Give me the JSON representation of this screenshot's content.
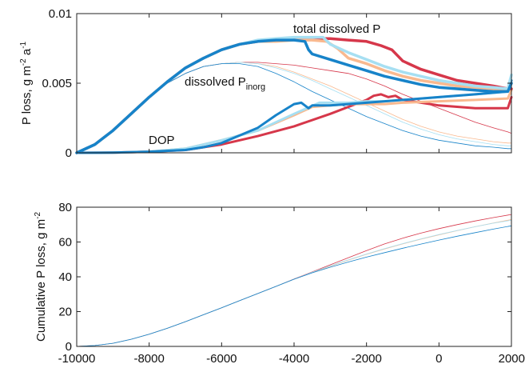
{
  "chart_data": [
    {
      "type": "line",
      "ylabel_main": "P loss, g m",
      "ylabel_exp1": "-2",
      "ylabel_mid": " a",
      "ylabel_exp2": "-1",
      "xlim": [
        -10000,
        2000
      ],
      "ylim": [
        0,
        0.01
      ],
      "yticks": [
        0,
        0.005,
        0.01
      ],
      "ytick_labels": [
        "0",
        "0.005",
        "0.01"
      ],
      "grid": false,
      "annotations": {
        "total": "total dissolved P",
        "dissolved_main": "dissolved P",
        "dissolved_sub": "inorg",
        "dop": "DOP"
      },
      "series": [
        {
          "group": "total",
          "color": "#d6374a",
          "width": 3.5,
          "x": [
            -10000,
            -9500,
            -9000,
            -8500,
            -8000,
            -7500,
            -7000,
            -6500,
            -6000,
            -5500,
            -5000,
            -4500,
            -4000,
            -3500,
            -3200,
            -3000,
            -2500,
            -2000,
            -1600,
            -1300,
            -1000,
            -500,
            0,
            500,
            1000,
            1500,
            1900,
            2000
          ],
          "y": [
            0,
            0.0006,
            0.0016,
            0.0028,
            0.004,
            0.0051,
            0.0061,
            0.0068,
            0.0074,
            0.0078,
            0.008,
            0.0081,
            0.0082,
            0.0082,
            0.0082,
            0.0082,
            0.0081,
            0.008,
            0.0077,
            0.0074,
            0.0066,
            0.006,
            0.0056,
            0.0052,
            0.005,
            0.0048,
            0.0046,
            0.0046
          ]
        },
        {
          "group": "total",
          "color": "#f9b98f",
          "width": 3.5,
          "x": [
            -10000,
            -9500,
            -9000,
            -8500,
            -8000,
            -7500,
            -7000,
            -6500,
            -6000,
            -5500,
            -5000,
            -4500,
            -4000,
            -3500,
            -3100,
            -2800,
            -2500,
            -2000,
            -1500,
            -1000,
            -500,
            0,
            500,
            1000,
            1500,
            1900,
            2000
          ],
          "y": [
            0,
            0.0006,
            0.0016,
            0.0028,
            0.004,
            0.0051,
            0.0061,
            0.0068,
            0.0074,
            0.0078,
            0.008,
            0.008,
            0.0081,
            0.0081,
            0.008,
            0.0075,
            0.0068,
            0.0064,
            0.0059,
            0.0055,
            0.0052,
            0.005,
            0.0048,
            0.0047,
            0.0046,
            0.0045,
            0.005
          ]
        },
        {
          "group": "total",
          "color": "#a6dff2",
          "width": 3.5,
          "x": [
            -10000,
            -9500,
            -9000,
            -8500,
            -8000,
            -7500,
            -7000,
            -6500,
            -6000,
            -5500,
            -5000,
            -4500,
            -4000,
            -3500,
            -3200,
            -3000,
            -2500,
            -2000,
            -1500,
            -1000,
            -500,
            0,
            500,
            1000,
            1500,
            1900,
            2000
          ],
          "y": [
            0,
            0.0006,
            0.0016,
            0.0028,
            0.004,
            0.0051,
            0.0061,
            0.0068,
            0.0074,
            0.0078,
            0.0081,
            0.0082,
            0.0083,
            0.0083,
            0.0083,
            0.0078,
            0.0072,
            0.0067,
            0.0062,
            0.0058,
            0.0055,
            0.0052,
            0.005,
            0.0048,
            0.0047,
            0.0046,
            0.0056
          ]
        },
        {
          "group": "total",
          "color": "#1783c9",
          "width": 3.5,
          "x": [
            -10000,
            -9500,
            -9000,
            -8500,
            -8000,
            -7500,
            -7000,
            -6500,
            -6000,
            -5500,
            -5000,
            -4500,
            -4000,
            -3700,
            -3600,
            -3500,
            -3000,
            -2500,
            -2000,
            -1500,
            -1000,
            -500,
            0,
            500,
            1000,
            1500,
            1900,
            2000
          ],
          "y": [
            0,
            0.0006,
            0.0016,
            0.0028,
            0.004,
            0.0051,
            0.0061,
            0.0068,
            0.0074,
            0.0078,
            0.008,
            0.0081,
            0.0081,
            0.008,
            0.0074,
            0.0071,
            0.0067,
            0.0063,
            0.0059,
            0.0055,
            0.0052,
            0.0049,
            0.0047,
            0.0046,
            0.0045,
            0.0044,
            0.0044,
            0.005
          ]
        },
        {
          "group": "dop",
          "color": "#d6374a",
          "width": 3,
          "x": [
            -10000,
            -9000,
            -8000,
            -7000,
            -6500,
            -6000,
            -5000,
            -4000,
            -3000,
            -2500,
            -2000,
            -1800,
            -1600,
            -1400,
            -1200,
            -1000,
            0,
            1000,
            1900,
            2000
          ],
          "y": [
            0,
            1e-05,
            8e-05,
            0.0002,
            0.0004,
            0.0006,
            0.0012,
            0.0019,
            0.0028,
            0.0033,
            0.0038,
            0.0041,
            0.0042,
            0.004,
            0.0041,
            0.0038,
            0.0034,
            0.0032,
            0.0032,
            0.004
          ]
        },
        {
          "group": "dop",
          "color": "#f9b98f",
          "width": 3,
          "x": [
            -10000,
            -9000,
            -8000,
            -7000,
            -6500,
            -6000,
            -5000,
            -4000,
            -3500,
            -3000,
            -2500,
            -2000,
            -1500,
            -1000,
            0,
            1000,
            1900,
            2000
          ],
          "y": [
            0,
            1e-05,
            8e-05,
            0.0003,
            0.0006,
            0.0009,
            0.0016,
            0.0027,
            0.0033,
            0.0034,
            0.0035,
            0.0035,
            0.0035,
            0.0036,
            0.0037,
            0.0038,
            0.0039,
            0.0045
          ]
        },
        {
          "group": "dop",
          "color": "#a6dff2",
          "width": 3,
          "x": [
            -10000,
            -9000,
            -8000,
            -7000,
            -6500,
            -6000,
            -5000,
            -4000,
            -3300,
            -3000,
            -2500,
            -2000,
            -1500,
            -1000,
            0,
            1000,
            1900,
            2000
          ],
          "y": [
            0,
            1e-05,
            8e-05,
            0.0003,
            0.0006,
            0.0009,
            0.0016,
            0.0028,
            0.0036,
            0.0036,
            0.0036,
            0.0037,
            0.0037,
            0.0038,
            0.004,
            0.0042,
            0.0044,
            0.0052
          ]
        },
        {
          "group": "dop",
          "color": "#1783c9",
          "width": 3,
          "x": [
            -10000,
            -9000,
            -8000,
            -7000,
            -6500,
            -6000,
            -5000,
            -4500,
            -4000,
            -3800,
            -3600,
            -3500,
            -3000,
            -2500,
            -2000,
            -1500,
            -1000,
            0,
            1000,
            1900,
            2000
          ],
          "y": [
            0,
            1e-05,
            8e-05,
            0.0002,
            0.0004,
            0.0007,
            0.0018,
            0.0027,
            0.0035,
            0.0036,
            0.0032,
            0.0034,
            0.0034,
            0.0035,
            0.0036,
            0.0037,
            0.0038,
            0.004,
            0.0042,
            0.0044,
            0.0052
          ]
        },
        {
          "group": "pinorg",
          "color": "#d6374a",
          "width": 0.8,
          "x": [
            -10000,
            -9500,
            -9000,
            -8500,
            -8000,
            -7500,
            -7000,
            -6500,
            -6000,
            -5500,
            -5000,
            -4500,
            -4000,
            -3500,
            -3000,
            -2500,
            -2000,
            -1500,
            -1000,
            -500,
            0,
            500,
            1000,
            1500,
            1900,
            2000
          ],
          "y": [
            0,
            0.0006,
            0.0016,
            0.0028,
            0.004,
            0.005,
            0.0057,
            0.0062,
            0.0064,
            0.0065,
            0.0065,
            0.0064,
            0.0063,
            0.0061,
            0.0059,
            0.0057,
            0.0053,
            0.0048,
            0.0042,
            0.0037,
            0.0032,
            0.0027,
            0.0022,
            0.0018,
            0.0015,
            0.0014
          ]
        },
        {
          "group": "pinorg",
          "color": "#f9b98f",
          "width": 0.8,
          "x": [
            -10000,
            -9500,
            -9000,
            -8500,
            -8000,
            -7500,
            -7000,
            -6500,
            -6000,
            -5500,
            -5000,
            -4500,
            -4000,
            -3500,
            -3000,
            -2500,
            -2000,
            -1500,
            -1000,
            -500,
            0,
            500,
            1000,
            1500,
            1900,
            2000
          ],
          "y": [
            0,
            0.0006,
            0.0016,
            0.0028,
            0.004,
            0.005,
            0.0057,
            0.0062,
            0.0064,
            0.0065,
            0.0064,
            0.0062,
            0.0058,
            0.0053,
            0.0048,
            0.0042,
            0.0036,
            0.003,
            0.0024,
            0.0019,
            0.0015,
            0.0012,
            0.001,
            0.0008,
            0.0007,
            0.0007
          ]
        },
        {
          "group": "pinorg",
          "color": "#a6dff2",
          "width": 0.8,
          "x": [
            -10000,
            -9500,
            -9000,
            -8500,
            -8000,
            -7500,
            -7000,
            -6500,
            -6000,
            -5500,
            -5000,
            -4500,
            -4000,
            -3500,
            -3000,
            -2500,
            -2000,
            -1500,
            -1000,
            -500,
            0,
            500,
            1000,
            1500,
            1900,
            2000
          ],
          "y": [
            0,
            0.0006,
            0.0016,
            0.0028,
            0.004,
            0.005,
            0.0057,
            0.0062,
            0.0064,
            0.0065,
            0.0064,
            0.0061,
            0.0057,
            0.0052,
            0.0046,
            0.004,
            0.0034,
            0.0028,
            0.0022,
            0.0017,
            0.0013,
            0.001,
            0.0008,
            0.0006,
            0.0005,
            0.0005
          ]
        },
        {
          "group": "pinorg",
          "color": "#1783c9",
          "width": 0.8,
          "x": [
            -10000,
            -9500,
            -9000,
            -8500,
            -8000,
            -7500,
            -7000,
            -6500,
            -6000,
            -5500,
            -5000,
            -4500,
            -4000,
            -3500,
            -3000,
            -2500,
            -2000,
            -1500,
            -1000,
            -500,
            0,
            500,
            1000,
            1500,
            1900,
            2000
          ],
          "y": [
            0,
            0.0006,
            0.0016,
            0.0028,
            0.004,
            0.005,
            0.0057,
            0.0062,
            0.0064,
            0.0064,
            0.0062,
            0.0057,
            0.0051,
            0.0044,
            0.0038,
            0.0032,
            0.0026,
            0.0021,
            0.0016,
            0.0012,
            0.0009,
            0.0007,
            0.0005,
            0.0004,
            0.0003,
            0.0003
          ]
        }
      ]
    },
    {
      "type": "line",
      "ylabel_main": "Cumulative P loss, g m",
      "ylabel_exp": "-2",
      "xlim": [
        -10000,
        2000
      ],
      "ylim": [
        0,
        80
      ],
      "yticks": [
        0,
        20,
        40,
        60,
        80
      ],
      "ytick_labels": [
        "0",
        "20",
        "40",
        "60",
        "80"
      ],
      "xticks": [
        -10000,
        -8000,
        -6000,
        -4000,
        -2000,
        0,
        2000
      ],
      "xtick_labels": [
        "-10000",
        "-8000",
        "-6000",
        "-4000",
        "-2000",
        "0",
        "2000"
      ],
      "grid": false,
      "series": [
        {
          "color": "#d6374a",
          "width": 0.8,
          "x": [
            -10000,
            -9500,
            -9000,
            -8500,
            -8000,
            -7500,
            -7000,
            -6500,
            -6000,
            -5500,
            -5000,
            -4500,
            -4000,
            -3500,
            -3000,
            -2500,
            -2000,
            -1500,
            -1000,
            -500,
            0,
            500,
            1000,
            1500,
            2000
          ],
          "y": [
            0,
            0.5,
            1.8,
            4.1,
            7.0,
            10.4,
            14.2,
            18.2,
            22.2,
            26.3,
            30.4,
            34.5,
            38.7,
            42.8,
            46.9,
            51.0,
            55.1,
            58.9,
            62.2,
            65.1,
            67.7,
            70.0,
            72.1,
            74.0,
            75.8
          ]
        },
        {
          "color": "#f9b98f",
          "width": 0.8,
          "x": [
            -10000,
            -9500,
            -9000,
            -8500,
            -8000,
            -7500,
            -7000,
            -6500,
            -6000,
            -5500,
            -5000,
            -4500,
            -4000,
            -3500,
            -3000,
            -2500,
            -2000,
            -1500,
            -1000,
            -500,
            0,
            500,
            1000,
            1500,
            2000
          ],
          "y": [
            0,
            0.5,
            1.8,
            4.1,
            7.0,
            10.4,
            14.2,
            18.2,
            22.2,
            26.3,
            30.4,
            34.5,
            38.6,
            42.5,
            46.1,
            49.6,
            52.9,
            56.0,
            58.9,
            61.6,
            64.1,
            66.5,
            68.8,
            70.9,
            72.9
          ]
        },
        {
          "color": "#a6dff2",
          "width": 0.8,
          "x": [
            -10000,
            -9500,
            -9000,
            -8500,
            -8000,
            -7500,
            -7000,
            -6500,
            -6000,
            -5500,
            -5000,
            -4500,
            -4000,
            -3500,
            -3000,
            -2500,
            -2000,
            -1500,
            -1000,
            -500,
            0,
            500,
            1000,
            1500,
            2000
          ],
          "y": [
            0,
            0.5,
            1.8,
            4.1,
            7.0,
            10.4,
            14.2,
            18.2,
            22.2,
            26.3,
            30.4,
            34.5,
            38.6,
            42.6,
            46.3,
            49.8,
            53.1,
            56.2,
            59.1,
            61.8,
            64.3,
            66.6,
            68.8,
            70.8,
            72.5
          ]
        },
        {
          "color": "#1783c9",
          "width": 0.8,
          "x": [
            -10000,
            -9500,
            -9000,
            -8500,
            -8000,
            -7500,
            -7000,
            -6500,
            -6000,
            -5500,
            -5000,
            -4500,
            -4000,
            -3500,
            -3000,
            -2500,
            -2000,
            -1500,
            -1000,
            -500,
            0,
            500,
            1000,
            1500,
            2000
          ],
          "y": [
            0,
            0.5,
            1.8,
            4.1,
            7.0,
            10.4,
            14.2,
            18.2,
            22.2,
            26.3,
            30.4,
            34.5,
            38.6,
            42.3,
            45.5,
            48.5,
            51.3,
            53.9,
            56.4,
            58.8,
            61.1,
            63.3,
            65.4,
            67.4,
            69.3
          ]
        }
      ]
    }
  ]
}
